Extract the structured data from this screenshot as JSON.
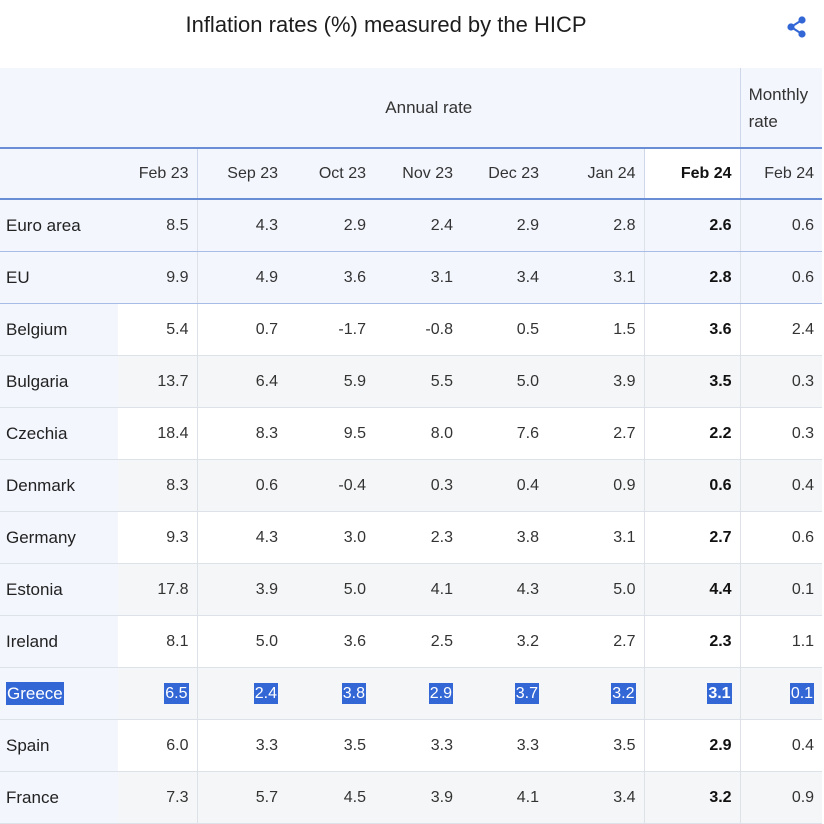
{
  "title": "Inflation rates (%) measured by the HICP",
  "share_icon": "share-icon",
  "header": {
    "annual_label": "Annual rate",
    "monthly_label_line1": "Monthly",
    "monthly_label_line2": "rate",
    "columns": [
      "Feb 23",
      "Sep 23",
      "Oct 23",
      "Nov 23",
      "Dec 23",
      "Jan 24",
      "Feb 24",
      "Feb 24"
    ]
  },
  "rows": [
    {
      "name": "Euro area",
      "values": [
        "8.5",
        "4.3",
        "2.9",
        "2.4",
        "2.9",
        "2.8",
        "2.6",
        "0.6"
      ]
    },
    {
      "name": "EU",
      "values": [
        "9.9",
        "4.9",
        "3.6",
        "3.1",
        "3.4",
        "3.1",
        "2.8",
        "0.6"
      ]
    },
    {
      "name": "Belgium",
      "values": [
        "5.4",
        "0.7",
        "-1.7",
        "-0.8",
        "0.5",
        "1.5",
        "3.6",
        "2.4"
      ]
    },
    {
      "name": "Bulgaria",
      "values": [
        "13.7",
        "6.4",
        "5.9",
        "5.5",
        "5.0",
        "3.9",
        "3.5",
        "0.3"
      ]
    },
    {
      "name": "Czechia",
      "values": [
        "18.4",
        "8.3",
        "9.5",
        "8.0",
        "7.6",
        "2.7",
        "2.2",
        "0.3"
      ]
    },
    {
      "name": "Denmark",
      "values": [
        "8.3",
        "0.6",
        "-0.4",
        "0.3",
        "0.4",
        "0.9",
        "0.6",
        "0.4"
      ]
    },
    {
      "name": "Germany",
      "values": [
        "9.3",
        "4.3",
        "3.0",
        "2.3",
        "3.8",
        "3.1",
        "2.7",
        "0.6"
      ]
    },
    {
      "name": "Estonia",
      "values": [
        "17.8",
        "3.9",
        "5.0",
        "4.1",
        "4.3",
        "5.0",
        "4.4",
        "0.1"
      ]
    },
    {
      "name": "Ireland",
      "values": [
        "8.1",
        "5.0",
        "3.6",
        "2.5",
        "3.2",
        "2.7",
        "2.3",
        "1.1"
      ]
    },
    {
      "name": "Greece",
      "values": [
        "6.5",
        "2.4",
        "3.8",
        "2.9",
        "3.7",
        "3.2",
        "3.1",
        "0.1"
      ]
    },
    {
      "name": "Spain",
      "values": [
        "6.0",
        "3.3",
        "3.5",
        "3.3",
        "3.3",
        "3.5",
        "2.9",
        "0.4"
      ]
    },
    {
      "name": "France",
      "values": [
        "7.3",
        "5.7",
        "4.5",
        "3.9",
        "4.1",
        "3.4",
        "3.2",
        "0.9"
      ]
    }
  ],
  "selected_row": "Greece",
  "colors": {
    "accent": "#3367d6",
    "header_bg": "#f3f6fd",
    "divider": "#6a8ed6"
  }
}
